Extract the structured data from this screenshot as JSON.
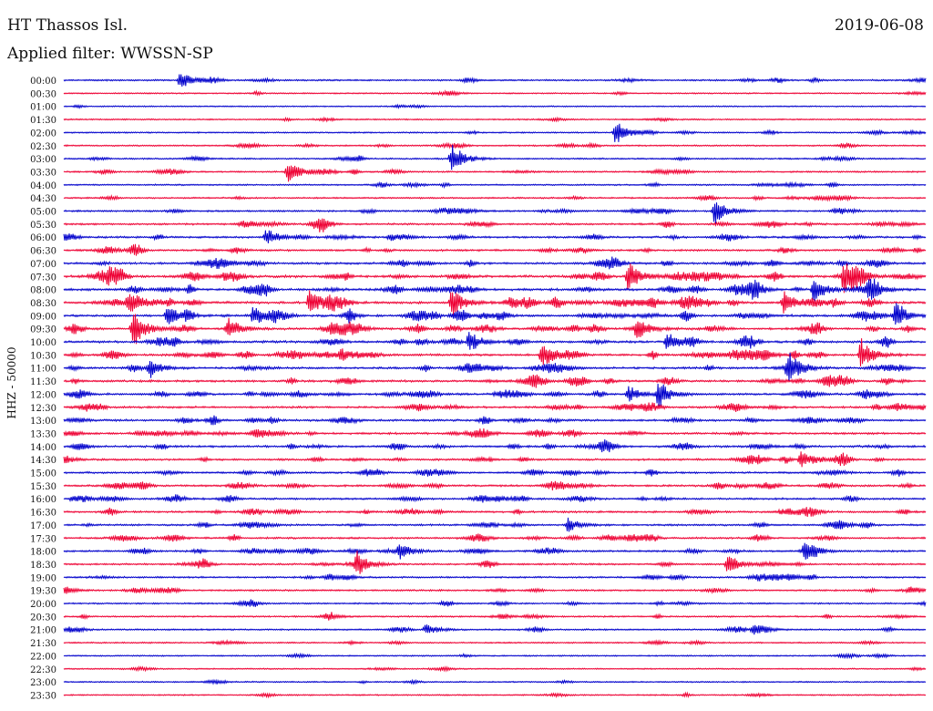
{
  "header": {
    "station": "HT Thassos Isl.",
    "filter": "Applied filter: WWSSN-SP",
    "date": "2019-06-08"
  },
  "chart_data": {
    "type": "line",
    "title": "HT Thassos Isl.",
    "subtitle": "Applied filter: WWSSN-SP",
    "ylabel": "HHZ - 50000",
    "xlabel": "",
    "colors": [
      "#0000cc",
      "#ee0033"
    ],
    "grid": false,
    "row_labels": [
      "00:00",
      "00:30",
      "01:00",
      "01:30",
      "02:00",
      "02:30",
      "03:00",
      "03:30",
      "04:00",
      "04:30",
      "05:00",
      "05:30",
      "06:00",
      "06:30",
      "07:00",
      "07:30",
      "08:00",
      "08:30",
      "09:00",
      "09:30",
      "10:00",
      "10:30",
      "11:00",
      "11:30",
      "12:00",
      "12:30",
      "13:00",
      "13:30",
      "14:00",
      "14:30",
      "15:00",
      "15:30",
      "16:00",
      "16:30",
      "17:00",
      "17:30",
      "18:00",
      "18:30",
      "19:00",
      "19:30",
      "20:00",
      "20:30",
      "21:00",
      "21:30",
      "22:00",
      "22:30",
      "23:00",
      "23:30"
    ],
    "activity": [
      0.6,
      0.3,
      0.2,
      0.3,
      0.4,
      0.5,
      0.5,
      0.6,
      0.5,
      0.6,
      0.8,
      0.9,
      1.0,
      1.0,
      1.2,
      1.5,
      1.5,
      1.5,
      1.5,
      1.4,
      1.3,
      1.3,
      1.2,
      1.2,
      1.2,
      1.1,
      1.1,
      1.1,
      1.1,
      1.0,
      1.0,
      1.0,
      1.0,
      1.0,
      0.9,
      0.9,
      0.9,
      0.8,
      0.8,
      0.7,
      0.6,
      0.6,
      0.6,
      0.4,
      0.3,
      0.3,
      0.3,
      0.3
    ],
    "events": [
      {
        "row": 0,
        "t": 0.135,
        "amp": 10
      },
      {
        "row": 4,
        "t": 0.64,
        "amp": 14
      },
      {
        "row": 6,
        "t": 0.45,
        "amp": 18
      },
      {
        "row": 7,
        "t": 0.26,
        "amp": 14
      },
      {
        "row": 10,
        "t": 0.755,
        "amp": 16
      },
      {
        "row": 12,
        "t": 0.235,
        "amp": 10
      },
      {
        "row": 15,
        "t": 0.655,
        "amp": 18
      },
      {
        "row": 15,
        "t": 0.905,
        "amp": 14
      },
      {
        "row": 16,
        "t": 0.87,
        "amp": 16
      },
      {
        "row": 16,
        "t": 0.935,
        "amp": 14
      },
      {
        "row": 17,
        "t": 0.075,
        "amp": 16
      },
      {
        "row": 17,
        "t": 0.285,
        "amp": 14
      },
      {
        "row": 17,
        "t": 0.45,
        "amp": 16
      },
      {
        "row": 17,
        "t": 0.835,
        "amp": 14
      },
      {
        "row": 18,
        "t": 0.12,
        "amp": 12
      },
      {
        "row": 18,
        "t": 0.22,
        "amp": 12
      },
      {
        "row": 18,
        "t": 0.965,
        "amp": 10
      },
      {
        "row": 19,
        "t": 0.08,
        "amp": 22
      },
      {
        "row": 19,
        "t": 0.19,
        "amp": 14
      },
      {
        "row": 19,
        "t": 0.665,
        "amp": 12
      },
      {
        "row": 20,
        "t": 0.47,
        "amp": 12
      },
      {
        "row": 20,
        "t": 0.7,
        "amp": 12
      },
      {
        "row": 21,
        "t": 0.555,
        "amp": 16
      },
      {
        "row": 21,
        "t": 0.925,
        "amp": 18
      },
      {
        "row": 22,
        "t": 0.1,
        "amp": 10
      },
      {
        "row": 22,
        "t": 0.84,
        "amp": 18
      },
      {
        "row": 24,
        "t": 0.69,
        "amp": 16
      },
      {
        "row": 24,
        "t": 0.655,
        "amp": 10
      },
      {
        "row": 34,
        "t": 0.585,
        "amp": 8
      },
      {
        "row": 29,
        "t": 0.855,
        "amp": 10
      },
      {
        "row": 36,
        "t": 0.39,
        "amp": 10
      },
      {
        "row": 36,
        "t": 0.86,
        "amp": 10
      },
      {
        "row": 37,
        "t": 0.34,
        "amp": 14
      },
      {
        "row": 37,
        "t": 0.77,
        "amp": 10
      },
      {
        "row": 42,
        "t": 0.42,
        "amp": 6
      },
      {
        "row": 42,
        "t": 0.8,
        "amp": 6
      }
    ]
  }
}
